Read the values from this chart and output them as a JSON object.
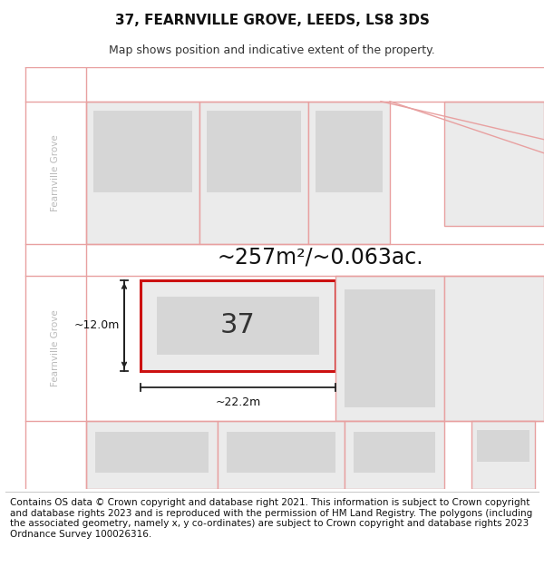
{
  "title": "37, FEARNVILLE GROVE, LEEDS, LS8 3DS",
  "subtitle": "Map shows position and indicative extent of the property.",
  "copyright_text": "Contains OS data © Crown copyright and database right 2021. This information is subject to Crown copyright and database rights 2023 and is reproduced with the permission of HM Land Registry. The polygons (including the associated geometry, namely x, y co-ordinates) are subject to Crown copyright and database rights 2023 Ordnance Survey 100026316.",
  "area_label": "~257m²/~0.063ac.",
  "width_label": "~22.2m",
  "height_label": "~12.0m",
  "number_label": "37",
  "map_bg": "#f2f0f0",
  "road_color": "#ffffff",
  "road_border_color": "#e8a0a0",
  "plot_fill": "#ebebeb",
  "plot_border_red": "#cc1111",
  "building_fill": "#d6d6d6",
  "dim_line_color": "#222222",
  "street_label_color": "#bbbbbb",
  "title_fontsize": 11,
  "subtitle_fontsize": 9,
  "copyright_fontsize": 7.5,
  "area_fontsize": 17,
  "number_fontsize": 22
}
